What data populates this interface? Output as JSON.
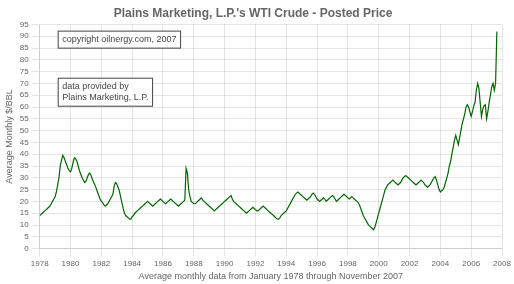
{
  "chart_data": {
    "type": "line",
    "title": "Plains Marketing, L.P.'s WTI Crude - Posted Price",
    "xlabel": "Average monthly data from January 1978 through November 2007",
    "ylabel": "Average Monthly $/BBL",
    "annotations": [
      "copyright oilnergy.com, 2007",
      "data provided by\nPlains Marketing, L.P."
    ],
    "color": "#006600",
    "grid": true,
    "xlim": [
      1978,
      2008
    ],
    "ylim": [
      0,
      95
    ],
    "xticks": [
      1978,
      1980,
      1982,
      1984,
      1986,
      1988,
      1990,
      1992,
      1994,
      1996,
      1998,
      2000,
      2002,
      2004,
      2006,
      2008
    ],
    "yticks": [
      0,
      5,
      10,
      15,
      20,
      25,
      30,
      35,
      40,
      45,
      50,
      55,
      60,
      65,
      70,
      75,
      80,
      85,
      90,
      95
    ],
    "x": [
      1978,
      1978.083333,
      1978.166667,
      1978.25,
      1978.333333,
      1978.416667,
      1978.5,
      1978.583333,
      1978.666667,
      1978.75,
      1978.833333,
      1978.916667,
      1979,
      1979.083333,
      1979.166667,
      1979.25,
      1979.333333,
      1979.416667,
      1979.5,
      1979.583333,
      1979.666667,
      1979.75,
      1979.833333,
      1979.916667,
      1980,
      1980.083333,
      1980.166667,
      1980.25,
      1980.333333,
      1980.416667,
      1980.5,
      1980.583333,
      1980.666667,
      1980.75,
      1980.833333,
      1980.916667,
      1981,
      1981.083333,
      1981.166667,
      1981.25,
      1981.333333,
      1981.416667,
      1981.5,
      1981.583333,
      1981.666667,
      1981.75,
      1981.833333,
      1981.916667,
      1982,
      1982.083333,
      1982.166667,
      1982.25,
      1982.333333,
      1982.416667,
      1982.5,
      1982.583333,
      1982.666667,
      1982.75,
      1982.833333,
      1982.916667,
      1983,
      1983.083333,
      1983.166667,
      1983.25,
      1983.333333,
      1983.416667,
      1983.5,
      1983.583333,
      1983.666667,
      1983.75,
      1983.833333,
      1983.916667,
      1984,
      1984.083333,
      1984.166667,
      1984.25,
      1984.333333,
      1984.416667,
      1984.5,
      1984.583333,
      1984.666667,
      1984.75,
      1984.833333,
      1984.916667,
      1985,
      1985.083333,
      1985.166667,
      1985.25,
      1985.333333,
      1985.416667,
      1985.5,
      1985.583333,
      1985.666667,
      1985.75,
      1985.833333,
      1985.916667,
      1986,
      1986.083333,
      1986.166667,
      1986.25,
      1986.333333,
      1986.416667,
      1986.5,
      1986.583333,
      1986.666667,
      1986.75,
      1986.833333,
      1986.916667,
      1987,
      1987.083333,
      1987.166667,
      1987.25,
      1987.333333,
      1987.416667,
      1987.5,
      1987.583333,
      1987.666667,
      1987.75,
      1987.833333,
      1987.916667,
      1988,
      1988.083333,
      1988.166667,
      1988.25,
      1988.333333,
      1988.416667,
      1988.5,
      1988.583333,
      1988.666667,
      1988.75,
      1988.833333,
      1988.916667,
      1989,
      1989.083333,
      1989.166667,
      1989.25,
      1989.333333,
      1989.416667,
      1989.5,
      1989.583333,
      1989.666667,
      1989.75,
      1989.833333,
      1989.916667,
      1990,
      1990.083333,
      1990.166667,
      1990.25,
      1990.333333,
      1990.416667,
      1990.5,
      1990.583333,
      1990.666667,
      1990.75,
      1990.833333,
      1990.916667,
      1991,
      1991.083333,
      1991.166667,
      1991.25,
      1991.333333,
      1991.416667,
      1991.5,
      1991.583333,
      1991.666667,
      1991.75,
      1991.833333,
      1991.916667,
      1992,
      1992.083333,
      1992.166667,
      1992.25,
      1992.333333,
      1992.416667,
      1992.5,
      1992.583333,
      1992.666667,
      1992.75,
      1992.833333,
      1992.916667,
      1993,
      1993.083333,
      1993.166667,
      1993.25,
      1993.333333,
      1993.416667,
      1993.5,
      1993.583333,
      1993.666667,
      1993.75,
      1993.833333,
      1993.916667,
      1994,
      1994.083333,
      1994.166667,
      1994.25,
      1994.333333,
      1994.416667,
      1994.5,
      1994.583333,
      1994.666667,
      1994.75,
      1994.833333,
      1994.916667,
      1995,
      1995.083333,
      1995.166667,
      1995.25,
      1995.333333,
      1995.416667,
      1995.5,
      1995.583333,
      1995.666667,
      1995.75,
      1995.833333,
      1995.916667,
      1996,
      1996.083333,
      1996.166667,
      1996.25,
      1996.333333,
      1996.416667,
      1996.5,
      1996.583333,
      1996.666667,
      1996.75,
      1996.833333,
      1996.916667,
      1997,
      1997.083333,
      1997.166667,
      1997.25,
      1997.333333,
      1997.416667,
      1997.5,
      1997.583333,
      1997.666667,
      1997.75,
      1997.833333,
      1997.916667,
      1998,
      1998.083333,
      1998.166667,
      1998.25,
      1998.333333,
      1998.416667,
      1998.5,
      1998.583333,
      1998.666667,
      1998.75,
      1998.833333,
      1998.916667,
      1999,
      1999.083333,
      1999.166667,
      1999.25,
      1999.333333,
      1999.416667,
      1999.5,
      1999.583333,
      1999.666667,
      1999.75,
      1999.833333,
      1999.916667,
      2000,
      2000.083333,
      2000.166667,
      2000.25,
      2000.333333,
      2000.416667,
      2000.5,
      2000.583333,
      2000.666667,
      2000.75,
      2000.833333,
      2000.916667,
      2001,
      2001.083333,
      2001.166667,
      2001.25,
      2001.333333,
      2001.416667,
      2001.5,
      2001.583333,
      2001.666667,
      2001.75,
      2001.833333,
      2001.916667,
      2002,
      2002.083333,
      2002.166667,
      2002.25,
      2002.333333,
      2002.416667,
      2002.5,
      2002.583333,
      2002.666667,
      2002.75,
      2002.833333,
      2002.916667,
      2003,
      2003.083333,
      2003.166667,
      2003.25,
      2003.333333,
      2003.416667,
      2003.5,
      2003.583333,
      2003.666667,
      2003.75,
      2003.833333,
      2003.916667,
      2004,
      2004.083333,
      2004.166667,
      2004.25,
      2004.333333,
      2004.416667,
      2004.5,
      2004.583333,
      2004.666667,
      2004.75,
      2004.833333,
      2004.916667,
      2005,
      2005.083333,
      2005.166667,
      2005.25,
      2005.333333,
      2005.416667,
      2005.5,
      2005.583333,
      2005.666667,
      2005.75,
      2005.833333,
      2005.916667,
      2006,
      2006.083333,
      2006.166667,
      2006.25,
      2006.333333,
      2006.416667,
      2006.5,
      2006.583333,
      2006.666667,
      2006.75,
      2006.833333,
      2006.916667,
      2007,
      2007.083333,
      2007.166667,
      2007.25,
      2007.333333,
      2007.416667,
      2007.5,
      2007.583333,
      2007.666667
    ],
    "values": [
      14.0,
      14.5,
      15.0,
      15.5,
      16.0,
      16.5,
      17.0,
      17.5,
      18.0,
      19.0,
      20.0,
      21.0,
      22.0,
      24.0,
      27.0,
      30.0,
      35.0,
      37.5,
      39.5,
      38.5,
      37.0,
      35.5,
      34.0,
      33.0,
      32.5,
      34.0,
      36.5,
      38.5,
      38.0,
      37.0,
      35.0,
      33.0,
      31.5,
      30.0,
      29.0,
      28.0,
      28.5,
      30.0,
      31.5,
      32.0,
      31.0,
      29.5,
      28.0,
      27.0,
      25.5,
      24.0,
      22.5,
      21.0,
      20.0,
      19.5,
      18.5,
      18.0,
      18.5,
      19.0,
      20.0,
      21.0,
      22.0,
      23.0,
      26.5,
      28.0,
      27.5,
      26.0,
      24.5,
      22.0,
      19.5,
      17.0,
      15.0,
      14.0,
      13.5,
      13.0,
      12.5,
      12.5,
      13.5,
      14.0,
      15.0,
      15.5,
      16.0,
      16.5,
      17.0,
      17.5,
      18.0,
      18.5,
      19.0,
      19.5,
      20.0,
      19.5,
      19.0,
      18.5,
      18.0,
      18.5,
      19.0,
      19.5,
      20.0,
      20.5,
      21.0,
      20.5,
      20.0,
      19.5,
      19.0,
      19.5,
      20.0,
      20.5,
      21.0,
      20.5,
      20.0,
      19.5,
      19.0,
      18.5,
      18.0,
      18.5,
      19.0,
      19.5,
      20.0,
      20.5,
      34.0,
      32.0,
      25.0,
      22.0,
      20.0,
      19.5,
      19.0,
      19.0,
      19.5,
      20.0,
      20.5,
      21.0,
      21.5,
      20.5,
      20.0,
      19.5,
      19.0,
      18.5,
      18.0,
      17.5,
      17.0,
      16.5,
      16.0,
      16.5,
      17.0,
      17.5,
      18.0,
      18.5,
      19.0,
      19.5,
      20.0,
      20.5,
      21.0,
      21.5,
      22.0,
      22.5,
      21.0,
      20.0,
      19.5,
      19.0,
      18.5,
      18.0,
      17.5,
      17.0,
      16.5,
      16.0,
      15.5,
      15.0,
      15.5,
      16.0,
      16.5,
      17.0,
      17.5,
      17.0,
      16.5,
      16.0,
      16.0,
      16.5,
      17.0,
      17.5,
      18.0,
      17.5,
      17.0,
      16.5,
      16.0,
      15.5,
      15.0,
      14.5,
      14.0,
      13.5,
      13.0,
      12.5,
      12.5,
      13.0,
      14.0,
      14.5,
      15.0,
      15.5,
      16.0,
      17.0,
      18.0,
      19.0,
      20.0,
      21.0,
      22.0,
      23.0,
      23.5,
      24.0,
      23.5,
      23.0,
      22.5,
      22.0,
      21.5,
      21.0,
      20.5,
      21.0,
      21.5,
      22.0,
      23.0,
      23.5,
      23.0,
      22.0,
      21.0,
      20.5,
      20.0,
      20.5,
      21.0,
      21.5,
      21.0,
      20.0,
      20.5,
      21.0,
      21.5,
      22.0,
      22.5,
      22.0,
      21.0,
      20.0,
      20.5,
      21.0,
      21.5,
      22.0,
      22.5,
      23.0,
      22.5,
      22.0,
      21.5,
      21.0,
      21.5,
      22.0,
      21.5,
      21.0,
      20.5,
      20.0,
      19.5,
      18.5,
      17.0,
      15.5,
      14.0,
      13.0,
      12.0,
      11.0,
      10.0,
      9.5,
      9.0,
      8.5,
      8.0,
      9.0,
      11.0,
      13.0,
      15.0,
      17.0,
      19.0,
      21.0,
      23.0,
      25.0,
      26.0,
      27.0,
      27.5,
      28.0,
      28.5,
      29.0,
      28.5,
      28.0,
      27.5,
      27.0,
      27.5,
      28.0,
      29.0,
      30.0,
      30.5,
      31.0,
      30.5,
      30.0,
      29.5,
      29.0,
      28.5,
      28.0,
      27.5,
      27.0,
      27.5,
      28.0,
      28.5,
      29.0,
      28.5,
      28.0,
      27.0,
      26.5,
      26.0,
      26.5,
      27.0,
      28.0,
      29.0,
      30.0,
      30.5,
      29.0,
      27.0,
      25.0,
      24.0,
      24.5,
      25.0,
      26.0,
      28.0,
      30.0,
      32.0,
      35.0,
      37.0,
      40.0,
      43.0,
      46.0,
      48.0,
      46.0,
      44.0,
      47.0,
      50.0,
      53.0,
      55.0,
      57.0,
      60.0,
      61.0,
      60.0,
      58.0,
      56.0,
      58.0,
      60.5,
      62.0,
      67.0,
      70.0,
      68.0,
      62.0,
      56.0,
      59.0,
      60.5,
      61.0,
      55.0,
      58.0,
      62.0,
      65.0,
      68.5,
      70.0,
      67.0,
      70.0,
      92.0
    ]
  }
}
